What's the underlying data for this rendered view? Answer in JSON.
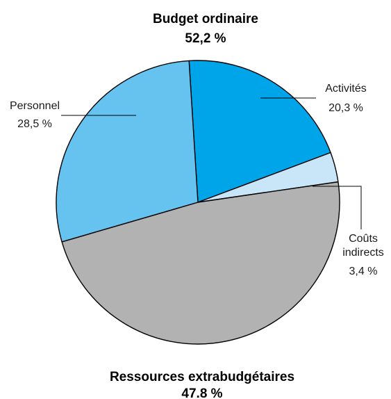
{
  "chart_data": {
    "type": "pie",
    "groups": [
      {
        "name": "Budget ordinaire",
        "value_label": "52,2 %"
      },
      {
        "name": "Ressources extrabudgétaires",
        "value_label": "47.8 %"
      }
    ],
    "slices": [
      {
        "key": "activites",
        "label": "Activités",
        "value": 20.3,
        "value_label": "20,3 %",
        "color": "#00a4e8"
      },
      {
        "key": "couts",
        "label": "Coûts indirects",
        "label_lines": [
          "Coûts",
          "indirects"
        ],
        "value": 3.4,
        "value_label": "3,4 %",
        "color": "#c8e6f8"
      },
      {
        "key": "extra",
        "label": "",
        "value": 47.8,
        "value_label": "",
        "color": "#b2b2b2"
      },
      {
        "key": "personnel",
        "label": "Personnel",
        "value": 28.5,
        "value_label": "28,5 %",
        "color": "#66c3f0"
      }
    ]
  }
}
